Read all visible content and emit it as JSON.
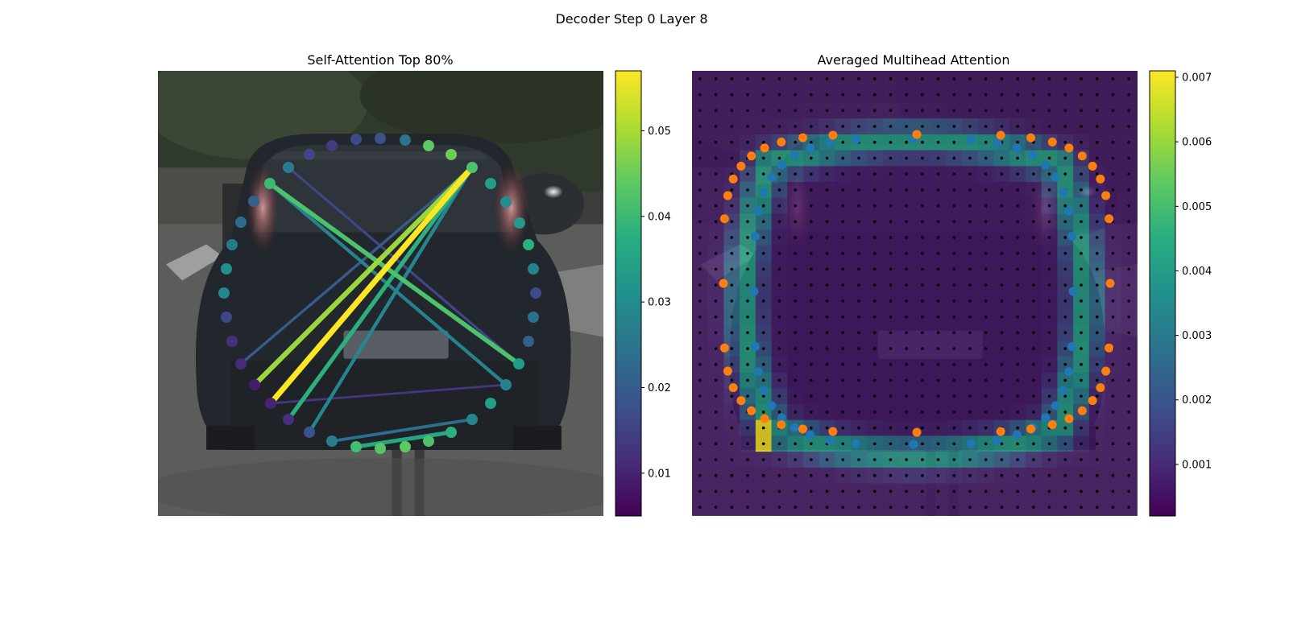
{
  "figure": {
    "suptitle": "Decoder Step 0 Layer 8"
  },
  "chart_data": [
    {
      "type": "scatter",
      "title": "Self-Attention Top 80%",
      "background_image": "car-rear-camera-photo",
      "colormap": "viridis",
      "colorbar": {
        "range": [
          0.005,
          0.057
        ],
        "ticks": [
          0.01,
          0.02,
          0.03,
          0.04,
          0.05
        ],
        "tick_labels": [
          "0.01",
          "0.02",
          "0.03",
          "0.04",
          "0.05"
        ]
      },
      "points": [
        {
          "x": 412,
          "y": 181,
          "v": 0.014
        },
        {
          "x": 442,
          "y": 173,
          "v": 0.017
        },
        {
          "x": 472,
          "y": 172,
          "v": 0.018
        },
        {
          "x": 503,
          "y": 174,
          "v": 0.025
        },
        {
          "x": 532,
          "y": 181,
          "v": 0.044
        },
        {
          "x": 560,
          "y": 192,
          "v": 0.045
        },
        {
          "x": 586,
          "y": 208,
          "v": 0.042
        },
        {
          "x": 609,
          "y": 228,
          "v": 0.034
        },
        {
          "x": 628,
          "y": 251,
          "v": 0.03
        },
        {
          "x": 645,
          "y": 277,
          "v": 0.033
        },
        {
          "x": 656,
          "y": 304,
          "v": 0.038
        },
        {
          "x": 662,
          "y": 334,
          "v": 0.028
        },
        {
          "x": 665,
          "y": 364,
          "v": 0.017
        },
        {
          "x": 662,
          "y": 394,
          "v": 0.024
        },
        {
          "x": 656,
          "y": 424,
          "v": 0.021
        },
        {
          "x": 644,
          "y": 452,
          "v": 0.033
        },
        {
          "x": 628,
          "y": 478,
          "v": 0.028
        },
        {
          "x": 609,
          "y": 501,
          "v": 0.034
        },
        {
          "x": 586,
          "y": 521,
          "v": 0.029
        },
        {
          "x": 560,
          "y": 537,
          "v": 0.038
        },
        {
          "x": 532,
          "y": 548,
          "v": 0.042
        },
        {
          "x": 503,
          "y": 555,
          "v": 0.044
        },
        {
          "x": 472,
          "y": 557,
          "v": 0.043
        },
        {
          "x": 442,
          "y": 555,
          "v": 0.041
        },
        {
          "x": 412,
          "y": 548,
          "v": 0.027
        },
        {
          "x": 384,
          "y": 537,
          "v": 0.018
        },
        {
          "x": 358,
          "y": 521,
          "v": 0.012
        },
        {
          "x": 336,
          "y": 501,
          "v": 0.01
        },
        {
          "x": 316,
          "y": 478,
          "v": 0.009
        },
        {
          "x": 299,
          "y": 452,
          "v": 0.011
        },
        {
          "x": 288,
          "y": 424,
          "v": 0.012
        },
        {
          "x": 281,
          "y": 394,
          "v": 0.016
        },
        {
          "x": 278,
          "y": 364,
          "v": 0.029
        },
        {
          "x": 281,
          "y": 334,
          "v": 0.031
        },
        {
          "x": 288,
          "y": 304,
          "v": 0.026
        },
        {
          "x": 299,
          "y": 276,
          "v": 0.023
        },
        {
          "x": 315,
          "y": 250,
          "v": 0.021
        },
        {
          "x": 335,
          "y": 228,
          "v": 0.04
        },
        {
          "x": 358,
          "y": 208,
          "v": 0.027
        },
        {
          "x": 384,
          "y": 192,
          "v": 0.016
        }
      ],
      "edges": [
        {
          "from": 6,
          "to": 27,
          "v": 0.057
        },
        {
          "from": 6,
          "to": 28,
          "v": 0.049
        },
        {
          "from": 37,
          "to": 15,
          "v": 0.042
        },
        {
          "from": 6,
          "to": 26,
          "v": 0.038
        },
        {
          "from": 23,
          "to": 19,
          "v": 0.036
        },
        {
          "from": 6,
          "to": 25,
          "v": 0.029
        },
        {
          "from": 37,
          "to": 16,
          "v": 0.028
        },
        {
          "from": 24,
          "to": 18,
          "v": 0.024
        },
        {
          "from": 38,
          "to": 15,
          "v": 0.016
        },
        {
          "from": 6,
          "to": 29,
          "v": 0.02
        },
        {
          "from": 27,
          "to": 16,
          "v": 0.013
        }
      ]
    },
    {
      "type": "heatmap",
      "title": "Averaged Multihead Attention",
      "background_image": "car-rear-camera-photo",
      "colormap": "viridis",
      "colorbar": {
        "range": [
          0.0002,
          0.0071
        ],
        "ticks": [
          0.001,
          0.002,
          0.003,
          0.004,
          0.005,
          0.006,
          0.007
        ],
        "tick_labels": [
          "0.001",
          "0.002",
          "0.003",
          "0.004",
          "0.005",
          "0.006",
          "0.007"
        ]
      },
      "grid": {
        "cols": 28,
        "rows": 28
      },
      "heat": {
        "base": 0.0006,
        "ring_peak": 0.0042,
        "hotspot": {
          "col": 4,
          "row": 23,
          "v": 0.0071
        }
      },
      "series": [
        {
          "color": "#1f77b4",
          "marker": "circle"
        },
        {
          "color": "#ff7f0e",
          "marker": "circle"
        }
      ],
      "reference_points": {
        "color": "#000000",
        "marker": "dot"
      }
    }
  ]
}
